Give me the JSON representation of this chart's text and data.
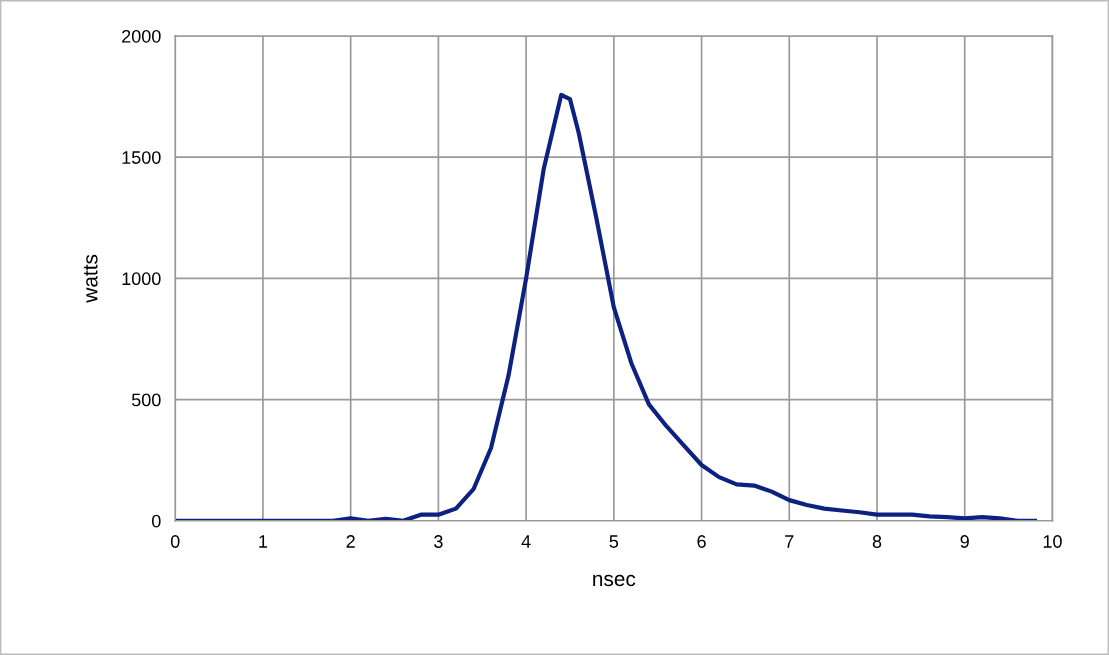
{
  "chart_data": {
    "type": "line",
    "xlabel": "nsec",
    "ylabel": "watts",
    "x": [
      0,
      0.5,
      1.0,
      1.5,
      1.8,
      2.0,
      2.2,
      2.4,
      2.6,
      2.8,
      3.0,
      3.2,
      3.4,
      3.6,
      3.8,
      4.0,
      4.2,
      4.4,
      4.5,
      4.6,
      4.8,
      5.0,
      5.2,
      5.4,
      5.6,
      5.8,
      6.0,
      6.2,
      6.4,
      6.6,
      6.8,
      7.0,
      7.2,
      7.4,
      7.6,
      7.8,
      8.0,
      8.2,
      8.4,
      8.6,
      8.8,
      9.0,
      9.2,
      9.4,
      9.6,
      9.8
    ],
    "series": [
      {
        "color": "#0d2180",
        "values": [
          0,
          0,
          0,
          0,
          0,
          10,
          0,
          8,
          0,
          25,
          25,
          50,
          130,
          300,
          600,
          1000,
          1450,
          1757,
          1740,
          1600,
          1250,
          880,
          650,
          480,
          390,
          310,
          230,
          180,
          150,
          145,
          120,
          85,
          65,
          50,
          42,
          35,
          25,
          25,
          25,
          18,
          15,
          10,
          15,
          10,
          0,
          0
        ]
      }
    ],
    "xlim": [
      0,
      10
    ],
    "xticks": [
      0,
      1,
      2,
      3,
      4,
      5,
      6,
      7,
      8,
      9,
      10
    ],
    "ylim": [
      0,
      2000
    ],
    "yticks": [
      0,
      500,
      1000,
      1500,
      2000
    ],
    "grid": true,
    "legend": false,
    "marker": "none",
    "line_style": "solid"
  }
}
